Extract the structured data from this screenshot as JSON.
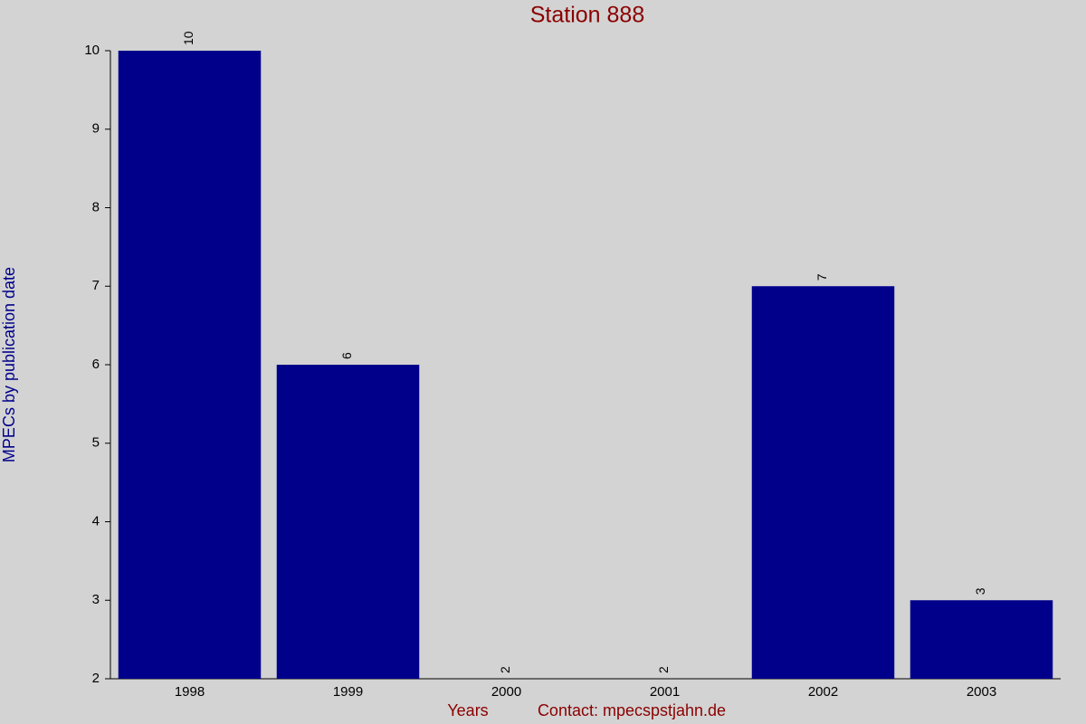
{
  "chart_data": {
    "type": "bar",
    "title": "Station 888",
    "categories": [
      "1998",
      "1999",
      "2000",
      "2001",
      "2002",
      "2003"
    ],
    "values": [
      10,
      6,
      2,
      2,
      7,
      3
    ],
    "color": "#00008b",
    "ylim": [
      2,
      10
    ],
    "yticks": [
      2,
      3,
      4,
      5,
      6,
      7,
      8,
      9,
      10
    ],
    "y_label": "MPECs by publication date",
    "x_label": "Years",
    "contact": "Contact: mpecspstjahn.de",
    "grid": false
  }
}
